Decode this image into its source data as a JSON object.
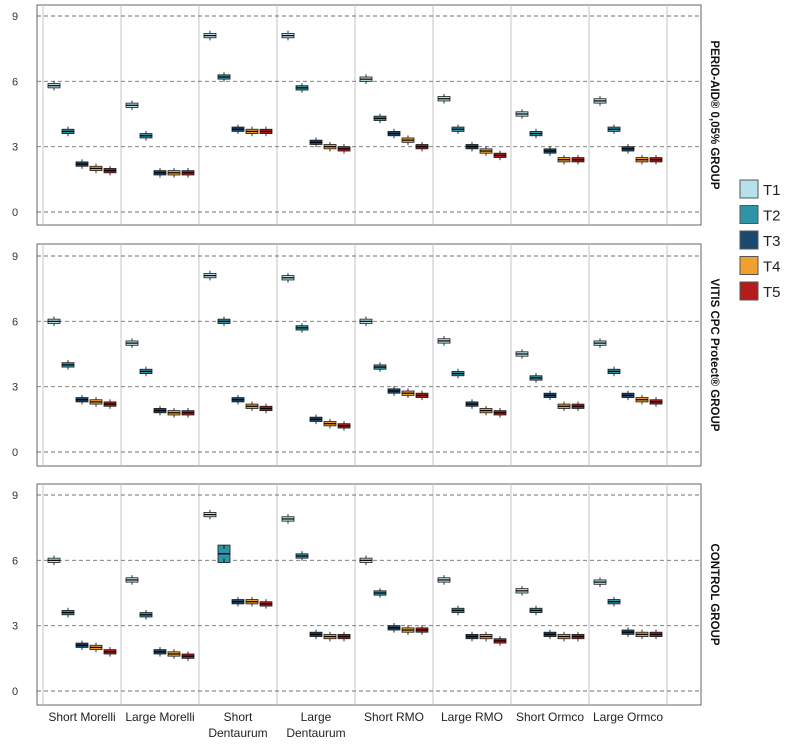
{
  "chart_data": {
    "type": "boxplot",
    "categories": [
      "Short Morelli",
      "Large Morelli",
      "Short Dentaurum",
      "Large Dentaurum",
      "Short RMO",
      "Large RMO",
      "Short Ormco",
      "Large Ormco"
    ],
    "category_lines": [
      [
        "Short Morelli"
      ],
      [
        "Large Morelli"
      ],
      [
        "Short",
        "Dentaurum"
      ],
      [
        "Large",
        "Dentaurum"
      ],
      [
        "Short RMO"
      ],
      [
        "Large RMO"
      ],
      [
        "Short Ormco"
      ],
      [
        "Large Ormco"
      ]
    ],
    "series_names": [
      "T1",
      "T2",
      "T3",
      "T4",
      "T5"
    ],
    "colors": [
      "#b8e2ea",
      "#2e94a7",
      "#1c4a6e",
      "#f0a030",
      "#b31c1c"
    ],
    "y_ticks": [
      0,
      3,
      6,
      9
    ],
    "ylim": [
      -0.4,
      9.2
    ],
    "grid": true,
    "legend_position": "right",
    "panels": [
      {
        "title": "PERIO-AID® 0,05% GROUP",
        "series": [
          {
            "name": "T1",
            "values": [
              5.8,
              4.9,
              8.1,
              8.1,
              6.1,
              5.2,
              4.5,
              5.1
            ]
          },
          {
            "name": "T2",
            "values": [
              3.7,
              3.5,
              6.2,
              5.7,
              4.3,
              3.8,
              3.6,
              3.8
            ]
          },
          {
            "name": "T3",
            "values": [
              2.2,
              1.8,
              3.8,
              3.2,
              3.6,
              3.0,
              2.8,
              2.9
            ]
          },
          {
            "name": "T4",
            "values": [
              2.0,
              1.8,
              3.7,
              3.0,
              3.3,
              2.8,
              2.4,
              2.4
            ]
          },
          {
            "name": "T5",
            "values": [
              1.9,
              1.8,
              3.7,
              2.9,
              3.0,
              2.6,
              2.4,
              2.4
            ]
          }
        ]
      },
      {
        "title": "VITIS CPC Protect® GROUP",
        "series": [
          {
            "name": "T1",
            "values": [
              6.0,
              5.0,
              8.1,
              8.0,
              6.0,
              5.1,
              4.5,
              5.0
            ]
          },
          {
            "name": "T2",
            "values": [
              4.0,
              3.7,
              6.0,
              5.7,
              3.9,
              3.6,
              3.4,
              3.7
            ]
          },
          {
            "name": "T3",
            "values": [
              2.4,
              1.9,
              2.4,
              1.5,
              2.8,
              2.2,
              2.6,
              2.6
            ]
          },
          {
            "name": "T4",
            "values": [
              2.3,
              1.8,
              2.1,
              1.3,
              2.7,
              1.9,
              2.1,
              2.4
            ]
          },
          {
            "name": "T5",
            "values": [
              2.2,
              1.8,
              2.0,
              1.2,
              2.6,
              1.8,
              2.1,
              2.3
            ]
          }
        ]
      },
      {
        "title": "CONTROL GROUP",
        "series": [
          {
            "name": "T1",
            "values": [
              6.0,
              5.1,
              8.1,
              7.9,
              6.0,
              5.1,
              4.6,
              5.0
            ]
          },
          {
            "name": "T2",
            "values": [
              3.6,
              3.5,
              6.3,
              6.2,
              4.5,
              3.7,
              3.7,
              4.1
            ]
          },
          {
            "name": "T3",
            "values": [
              2.1,
              1.8,
              4.1,
              2.6,
              2.9,
              2.5,
              2.6,
              2.7
            ]
          },
          {
            "name": "T4",
            "values": [
              2.0,
              1.7,
              4.1,
              2.5,
              2.8,
              2.5,
              2.5,
              2.6
            ]
          },
          {
            "name": "T5",
            "values": [
              1.8,
              1.6,
              4.0,
              2.5,
              2.8,
              2.3,
              2.5,
              2.6
            ]
          }
        ]
      }
    ]
  }
}
